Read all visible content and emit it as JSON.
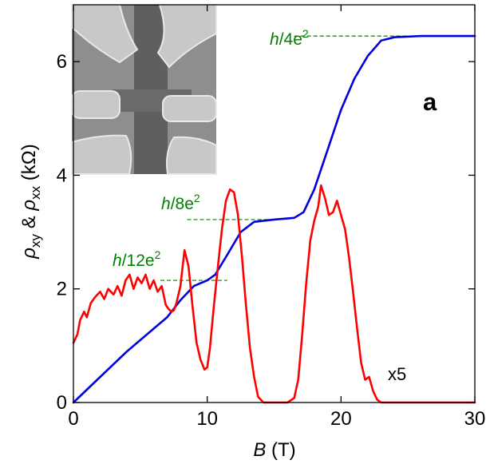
{
  "chart_data": {
    "type": "line",
    "panel_label": "a",
    "xlabel_var": "B",
    "xlabel_unit": " (T)",
    "ylabel_rho": "ρ",
    "ylabel_sub_xy": "xy",
    "ylabel_amp": " & ",
    "ylabel_sub_xx": "xx",
    "ylabel_unit": "  (kΩ)",
    "xlim": [
      0,
      30
    ],
    "ylim": [
      0,
      7
    ],
    "x_ticks": [
      0,
      10,
      20,
      30
    ],
    "x_tick_labels": [
      "0",
      "10",
      "20",
      "30"
    ],
    "y_ticks": [
      0,
      2,
      4,
      6
    ],
    "y_tick_labels": [
      "0",
      "2",
      "4",
      "6"
    ],
    "grid": false,
    "inset": "SEM micrograph of Hall-bar device",
    "annotations": {
      "scale_label": "x5",
      "plateaus": [
        {
          "label_h": "h",
          "label_denom": "/4e",
          "label_exp": "2",
          "y": 6.45,
          "x_range": [
            16.5,
            30
          ]
        },
        {
          "label_h": "h",
          "label_denom": "/8e",
          "label_exp": "2",
          "y": 3.22,
          "x_range": [
            8.5,
            15.5
          ]
        },
        {
          "label_h": "h",
          "label_denom": "/12e",
          "label_exp": "2",
          "y": 2.15,
          "x_range": [
            6.5,
            11.5
          ]
        }
      ]
    },
    "series": [
      {
        "color": "#0000dd",
        "x": [
          0,
          2,
          4,
          6,
          7,
          8,
          9,
          10,
          10.6,
          11.5,
          12.5,
          13.5,
          15,
          16.5,
          17.2,
          18,
          19,
          20,
          21,
          22,
          23,
          24,
          26,
          30
        ],
        "y": [
          0,
          0.45,
          0.9,
          1.3,
          1.5,
          1.8,
          2.05,
          2.15,
          2.25,
          2.6,
          3.0,
          3.18,
          3.22,
          3.25,
          3.35,
          3.75,
          4.45,
          5.15,
          5.7,
          6.1,
          6.37,
          6.43,
          6.45,
          6.45
        ]
      },
      {
        "color": "#ff0000",
        "x": [
          0,
          0.3,
          0.5,
          0.8,
          1,
          1.3,
          1.6,
          2,
          2.3,
          2.6,
          3,
          3.3,
          3.6,
          3.9,
          4.2,
          4.5,
          4.8,
          5.1,
          5.4,
          5.7,
          6,
          6.3,
          6.6,
          6.9,
          7.1,
          7.3,
          7.5,
          7.7,
          8,
          8.3,
          8.6,
          8.9,
          9.2,
          9.5,
          9.8,
          10,
          10.2,
          10.5,
          10.8,
          11.1,
          11.4,
          11.7,
          12,
          12.3,
          12.6,
          12.9,
          13.2,
          13.5,
          13.8,
          14.2,
          14.6,
          15,
          15.5,
          16,
          16.5,
          16.8,
          17.1,
          17.4,
          17.7,
          18,
          18.3,
          18.5,
          18.8,
          19.1,
          19.4,
          19.7,
          20,
          20.3,
          20.6,
          20.9,
          21.2,
          21.5,
          21.8,
          22.1,
          22.4,
          22.7,
          23,
          25,
          30
        ],
        "y": [
          1.05,
          1.2,
          1.45,
          1.6,
          1.5,
          1.75,
          1.85,
          1.95,
          1.82,
          2.0,
          1.9,
          2.05,
          1.88,
          2.15,
          2.25,
          2.0,
          2.2,
          2.1,
          2.25,
          2.0,
          2.15,
          1.95,
          2.05,
          1.72,
          1.65,
          1.6,
          1.62,
          1.75,
          2.05,
          2.68,
          2.4,
          1.7,
          1.05,
          0.75,
          0.58,
          0.62,
          0.95,
          1.7,
          2.4,
          3.05,
          3.55,
          3.75,
          3.7,
          3.3,
          2.55,
          1.7,
          0.95,
          0.45,
          0.1,
          0.0,
          0.0,
          0.0,
          0.0,
          0.0,
          0.08,
          0.4,
          1.2,
          2.1,
          2.85,
          3.2,
          3.45,
          3.82,
          3.6,
          3.3,
          3.35,
          3.55,
          3.3,
          3.05,
          2.55,
          1.95,
          1.3,
          0.7,
          0.4,
          0.45,
          0.2,
          0.05,
          0.0,
          0.0,
          0.0
        ]
      }
    ]
  }
}
